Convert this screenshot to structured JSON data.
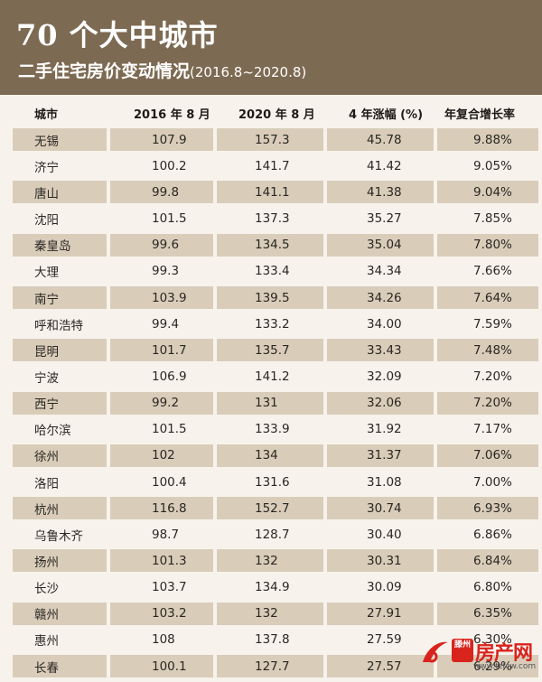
{
  "header": {
    "title": "70 个大中城市",
    "subtitle": "二手住宅房价变动情况",
    "range": "(2016.8~2020.8)"
  },
  "table": {
    "columns": [
      "城市",
      "2016 年 8 月",
      "2020 年 8 月",
      "4 年涨幅 (%)",
      "年复合增长率"
    ],
    "rows": [
      [
        "无锡",
        "107.9",
        "157.3",
        "45.78",
        "9.88%"
      ],
      [
        "济宁",
        "100.2",
        "141.7",
        "41.42",
        "9.05%"
      ],
      [
        "唐山",
        "99.8",
        "141.1",
        "41.38",
        "9.04%"
      ],
      [
        "沈阳",
        "101.5",
        "137.3",
        "35.27",
        "7.85%"
      ],
      [
        "秦皇岛",
        "99.6",
        "134.5",
        "35.04",
        "7.80%"
      ],
      [
        "大理",
        "99.3",
        "133.4",
        "34.34",
        "7.66%"
      ],
      [
        "南宁",
        "103.9",
        "139.5",
        "34.26",
        "7.64%"
      ],
      [
        "呼和浩特",
        "99.4",
        "133.2",
        "34.00",
        "7.59%"
      ],
      [
        "昆明",
        "101.7",
        "135.7",
        "33.43",
        "7.48%"
      ],
      [
        "宁波",
        "106.9",
        "141.2",
        "32.09",
        "7.20%"
      ],
      [
        "西宁",
        "99.2",
        "131",
        "32.06",
        "7.20%"
      ],
      [
        "哈尔滨",
        "101.5",
        "133.9",
        "31.92",
        "7.17%"
      ],
      [
        "徐州",
        "102",
        "134",
        "31.37",
        "7.06%"
      ],
      [
        "洛阳",
        "100.4",
        "131.6",
        "31.08",
        "7.00%"
      ],
      [
        "杭州",
        "116.8",
        "152.7",
        "30.74",
        "6.93%"
      ],
      [
        "乌鲁木齐",
        "98.7",
        "128.7",
        "30.40",
        "6.86%"
      ],
      [
        "扬州",
        "101.3",
        "132",
        "30.31",
        "6.84%"
      ],
      [
        "长沙",
        "103.7",
        "134.9",
        "30.09",
        "6.80%"
      ],
      [
        "赣州",
        "103.2",
        "132",
        "27.91",
        "6.35%"
      ],
      [
        "惠州",
        "108",
        "137.8",
        "27.59",
        "6.30%"
      ],
      [
        "长春",
        "100.1",
        "127.7",
        "27.57",
        "6.29%"
      ]
    ]
  },
  "watermark": {
    "badge": "滕州",
    "brand": "房产网",
    "url": "www.tzfcw.com"
  },
  "colors": {
    "header_bg": "#7d6a52",
    "row_shade": "#d9cdba",
    "page_bg": "#f7f3ec",
    "watermark_red": "#d9231d"
  }
}
